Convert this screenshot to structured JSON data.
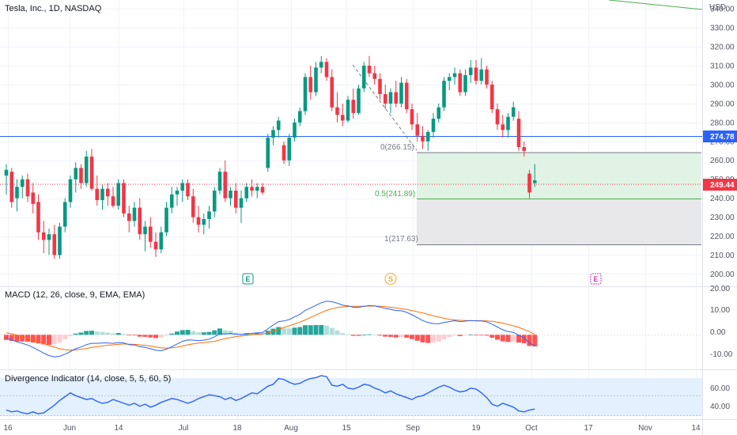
{
  "header": {
    "title": "Tesla, Inc., 1D, NASDAQ",
    "currency": "USD"
  },
  "colors": {
    "up": "#089981",
    "down": "#f23645",
    "hline": "#2962ff",
    "fib_green_fill": "#e1f3e4",
    "fib_gray_fill": "#e8e8ea",
    "macd_line": "#2962ff",
    "signal_line": "#ff6d00",
    "hist_up_strong": "#26a69a",
    "hist_up_weak": "#b2dfdb",
    "hist_down_strong": "#ff5252",
    "hist_down_weak": "#ffcdd2",
    "div_line": "#2962ff",
    "div_band": "#e3f0fd",
    "earnings": "#089981",
    "split": "#f5a623",
    "estimated_earnings": "#cc2fcc"
  },
  "price_axis": {
    "ticks": [
      "340.00",
      "330.00",
      "320.00",
      "310.00",
      "300.00",
      "290.00",
      "280.00",
      "270.00",
      "260.00",
      "250.00",
      "240.00",
      "230.00",
      "220.00",
      "210.00",
      "200.00"
    ],
    "horizontal_line_label": "274.78",
    "last_price_label": "249.44"
  },
  "fib": {
    "level_0": "0(266.15)",
    "level_05": "0.5(241.89)",
    "level_1": "1(217.63)"
  },
  "events": {
    "earnings_1": "E",
    "split": "S",
    "earnings_2": "E"
  },
  "macd_pane": {
    "title": "MACD (12, 26, close, 9, EMA, EMA)",
    "ticks": [
      "20.00",
      "10.00",
      "0.00",
      "-10.00"
    ]
  },
  "div_pane": {
    "title": "Divergence Indicator (14, close, 5, 5, 60, 5)",
    "ticks": [
      "60.00",
      "40.00"
    ]
  },
  "time_axis": {
    "labels": [
      "16",
      "Jun",
      "14",
      "Jul",
      "18",
      "Aug",
      "15",
      "Sep",
      "19",
      "Oct",
      "17",
      "Nov",
      "14"
    ]
  },
  "chart_data": {
    "type": "candlestick",
    "title": "Tesla, Inc., 1D, NASDAQ",
    "currency": "USD",
    "candles": [
      {
        "o": 252,
        "h": 258,
        "l": 242,
        "c": 255
      },
      {
        "o": 254,
        "h": 256,
        "l": 235,
        "c": 238
      },
      {
        "o": 240,
        "h": 250,
        "l": 233,
        "c": 246
      },
      {
        "o": 246,
        "h": 252,
        "l": 240,
        "c": 250
      },
      {
        "o": 250,
        "h": 253,
        "l": 238,
        "c": 241
      },
      {
        "o": 243,
        "h": 248,
        "l": 232,
        "c": 237
      },
      {
        "o": 238,
        "h": 242,
        "l": 218,
        "c": 222
      },
      {
        "o": 222,
        "h": 228,
        "l": 211,
        "c": 218
      },
      {
        "o": 218,
        "h": 224,
        "l": 210,
        "c": 221
      },
      {
        "o": 221,
        "h": 226,
        "l": 208,
        "c": 210
      },
      {
        "o": 210,
        "h": 227,
        "l": 208,
        "c": 225
      },
      {
        "o": 225,
        "h": 240,
        "l": 222,
        "c": 238
      },
      {
        "o": 238,
        "h": 252,
        "l": 235,
        "c": 250
      },
      {
        "o": 250,
        "h": 259,
        "l": 243,
        "c": 256
      },
      {
        "o": 256,
        "h": 258,
        "l": 245,
        "c": 248
      },
      {
        "o": 248,
        "h": 265,
        "l": 246,
        "c": 262
      },
      {
        "o": 262,
        "h": 266,
        "l": 244,
        "c": 245
      },
      {
        "o": 245,
        "h": 252,
        "l": 236,
        "c": 239
      },
      {
        "o": 239,
        "h": 247,
        "l": 234,
        "c": 245
      },
      {
        "o": 245,
        "h": 248,
        "l": 236,
        "c": 241
      },
      {
        "o": 241,
        "h": 246,
        "l": 235,
        "c": 236
      },
      {
        "o": 236,
        "h": 250,
        "l": 234,
        "c": 248
      },
      {
        "o": 248,
        "h": 250,
        "l": 230,
        "c": 232
      },
      {
        "o": 232,
        "h": 236,
        "l": 222,
        "c": 228
      },
      {
        "o": 228,
        "h": 238,
        "l": 225,
        "c": 235
      },
      {
        "o": 235,
        "h": 240,
        "l": 218,
        "c": 221
      },
      {
        "o": 221,
        "h": 228,
        "l": 212,
        "c": 225
      },
      {
        "o": 225,
        "h": 230,
        "l": 214,
        "c": 217
      },
      {
        "o": 217,
        "h": 222,
        "l": 209,
        "c": 213
      },
      {
        "o": 213,
        "h": 225,
        "l": 211,
        "c": 222
      },
      {
        "o": 222,
        "h": 238,
        "l": 220,
        "c": 235
      },
      {
        "o": 235,
        "h": 246,
        "l": 232,
        "c": 242
      },
      {
        "o": 242,
        "h": 246,
        "l": 236,
        "c": 244
      },
      {
        "o": 244,
        "h": 250,
        "l": 238,
        "c": 248
      },
      {
        "o": 248,
        "h": 250,
        "l": 239,
        "c": 241
      },
      {
        "o": 241,
        "h": 245,
        "l": 227,
        "c": 230
      },
      {
        "o": 230,
        "h": 236,
        "l": 222,
        "c": 226
      },
      {
        "o": 226,
        "h": 232,
        "l": 221,
        "c": 229
      },
      {
        "o": 229,
        "h": 236,
        "l": 224,
        "c": 233
      },
      {
        "o": 233,
        "h": 246,
        "l": 230,
        "c": 244
      },
      {
        "o": 244,
        "h": 256,
        "l": 242,
        "c": 254
      },
      {
        "o": 254,
        "h": 260,
        "l": 238,
        "c": 240
      },
      {
        "o": 240,
        "h": 246,
        "l": 236,
        "c": 244
      },
      {
        "o": 244,
        "h": 248,
        "l": 232,
        "c": 235
      },
      {
        "o": 235,
        "h": 244,
        "l": 227,
        "c": 240
      },
      {
        "o": 240,
        "h": 248,
        "l": 238,
        "c": 246
      },
      {
        "o": 246,
        "h": 250,
        "l": 241,
        "c": 244
      },
      {
        "o": 244,
        "h": 248,
        "l": 240,
        "c": 246
      },
      {
        "o": 246,
        "h": 248,
        "l": 242,
        "c": 243
      },
      {
        "o": 256,
        "h": 274,
        "l": 254,
        "c": 272
      },
      {
        "o": 272,
        "h": 278,
        "l": 268,
        "c": 276
      },
      {
        "o": 276,
        "h": 283,
        "l": 272,
        "c": 281
      },
      {
        "o": 268,
        "h": 270,
        "l": 258,
        "c": 260
      },
      {
        "o": 260,
        "h": 274,
        "l": 257,
        "c": 272
      },
      {
        "o": 272,
        "h": 282,
        "l": 270,
        "c": 280
      },
      {
        "o": 280,
        "h": 288,
        "l": 278,
        "c": 286
      },
      {
        "o": 286,
        "h": 306,
        "l": 284,
        "c": 304
      },
      {
        "o": 304,
        "h": 310,
        "l": 292,
        "c": 296
      },
      {
        "o": 296,
        "h": 312,
        "l": 294,
        "c": 309
      },
      {
        "o": 309,
        "h": 315,
        "l": 306,
        "c": 312
      },
      {
        "o": 312,
        "h": 314,
        "l": 302,
        "c": 304
      },
      {
        "o": 304,
        "h": 308,
        "l": 286,
        "c": 288
      },
      {
        "o": 288,
        "h": 296,
        "l": 280,
        "c": 284
      },
      {
        "o": 284,
        "h": 290,
        "l": 278,
        "c": 281
      },
      {
        "o": 281,
        "h": 294,
        "l": 280,
        "c": 292
      },
      {
        "o": 292,
        "h": 298,
        "l": 282,
        "c": 285
      },
      {
        "o": 285,
        "h": 300,
        "l": 284,
        "c": 298
      },
      {
        "o": 298,
        "h": 312,
        "l": 296,
        "c": 310
      },
      {
        "o": 310,
        "h": 315,
        "l": 304,
        "c": 306
      },
      {
        "o": 306,
        "h": 310,
        "l": 300,
        "c": 303
      },
      {
        "o": 303,
        "h": 306,
        "l": 292,
        "c": 295
      },
      {
        "o": 295,
        "h": 300,
        "l": 287,
        "c": 290
      },
      {
        "o": 290,
        "h": 298,
        "l": 285,
        "c": 296
      },
      {
        "o": 296,
        "h": 302,
        "l": 288,
        "c": 290
      },
      {
        "o": 290,
        "h": 304,
        "l": 288,
        "c": 301
      },
      {
        "o": 301,
        "h": 303,
        "l": 285,
        "c": 287
      },
      {
        "o": 287,
        "h": 290,
        "l": 276,
        "c": 279
      },
      {
        "o": 279,
        "h": 285,
        "l": 270,
        "c": 273
      },
      {
        "o": 273,
        "h": 278,
        "l": 266,
        "c": 270
      },
      {
        "o": 270,
        "h": 276,
        "l": 265,
        "c": 275
      },
      {
        "o": 275,
        "h": 285,
        "l": 272,
        "c": 282
      },
      {
        "o": 282,
        "h": 290,
        "l": 280,
        "c": 288
      },
      {
        "o": 288,
        "h": 304,
        "l": 286,
        "c": 302
      },
      {
        "o": 302,
        "h": 306,
        "l": 297,
        "c": 304
      },
      {
        "o": 304,
        "h": 309,
        "l": 300,
        "c": 306
      },
      {
        "o": 306,
        "h": 308,
        "l": 294,
        "c": 296
      },
      {
        "o": 296,
        "h": 308,
        "l": 294,
        "c": 305
      },
      {
        "o": 305,
        "h": 313,
        "l": 301,
        "c": 309
      },
      {
        "o": 309,
        "h": 313,
        "l": 300,
        "c": 302
      },
      {
        "o": 302,
        "h": 314,
        "l": 300,
        "c": 308
      },
      {
        "o": 308,
        "h": 310,
        "l": 298,
        "c": 300
      },
      {
        "o": 300,
        "h": 302,
        "l": 285,
        "c": 287
      },
      {
        "o": 287,
        "h": 290,
        "l": 276,
        "c": 279
      },
      {
        "o": 279,
        "h": 284,
        "l": 272,
        "c": 276
      },
      {
        "o": 276,
        "h": 285,
        "l": 272,
        "c": 283
      },
      {
        "o": 283,
        "h": 291,
        "l": 281,
        "c": 288
      },
      {
        "o": 282,
        "h": 286,
        "l": 265,
        "c": 267
      },
      {
        "o": 267,
        "h": 270,
        "l": 262,
        "c": 265
      },
      {
        "o": 253,
        "h": 255,
        "l": 240,
        "c": 243
      },
      {
        "o": 248,
        "h": 258,
        "l": 246,
        "c": 249.44
      }
    ],
    "horizontal_line": 274.78,
    "last_price": 249.44,
    "fib_retracement": {
      "level_0": 266.15,
      "level_05": 241.89,
      "level_1": 217.63
    },
    "y_range": [
      196,
      343
    ],
    "macd": {
      "macd": [
        -1.5,
        -2.5,
        -3.5,
        -4.2,
        -5.0,
        -6.2,
        -7.5,
        -9.0,
        -10.2,
        -10.8,
        -10.5,
        -9.5,
        -8.2,
        -6.8,
        -6.0,
        -4.8,
        -4.2,
        -4.2,
        -4.0,
        -4.0,
        -4.2,
        -3.8,
        -4.0,
        -4.8,
        -5.0,
        -5.8,
        -6.2,
        -6.8,
        -7.6,
        -7.8,
        -7.0,
        -5.8,
        -4.5,
        -3.2,
        -2.5,
        -2.6,
        -2.9,
        -2.6,
        -2.1,
        -1.0,
        0.6,
        0.4,
        0.7,
        0.2,
        0.1,
        0.5,
        0.7,
        1.0,
        1.0,
        3.0,
        4.8,
        6.5,
        6.8,
        7.5,
        8.8,
        10.0,
        12.0,
        13.2,
        14.5,
        15.7,
        16.5,
        16.2,
        15.5,
        14.5,
        14.2,
        13.5,
        13.5,
        14.0,
        14.3,
        14.2,
        13.6,
        12.9,
        12.5,
        11.9,
        11.8,
        11.0,
        9.8,
        8.4,
        7.0,
        6.0,
        5.5,
        5.4,
        6.0,
        6.5,
        6.9,
        6.5,
        6.7,
        7.0,
        6.8,
        6.8,
        6.4,
        5.2,
        3.8,
        2.5,
        1.6,
        1.2,
        -0.2,
        -1.5,
        -4.0,
        -5.5
      ],
      "signal": [
        1.0,
        0.5,
        -0.2,
        -0.9,
        -1.6,
        -2.4,
        -3.3,
        -4.3,
        -5.3,
        -6.1,
        -6.8,
        -7.3,
        -7.5,
        -7.4,
        -7.1,
        -6.7,
        -6.2,
        -5.8,
        -5.4,
        -5.1,
        -4.9,
        -4.7,
        -4.5,
        -4.6,
        -4.7,
        -4.9,
        -5.2,
        -5.5,
        -6.0,
        -6.4,
        -6.5,
        -6.4,
        -6.1,
        -5.5,
        -4.9,
        -4.4,
        -4.1,
        -3.8,
        -3.5,
        -3.2,
        -2.5,
        -1.8,
        -1.3,
        -0.9,
        -0.6,
        -0.3,
        0.0,
        0.2,
        0.4,
        1.0,
        1.8,
        2.7,
        3.6,
        4.4,
        5.3,
        6.2,
        7.3,
        8.5,
        9.7,
        10.9,
        12.0,
        12.8,
        13.4,
        13.7,
        13.9,
        14.0,
        14.0,
        14.0,
        14.1,
        14.1,
        14.0,
        13.8,
        13.5,
        13.2,
        12.8,
        12.4,
        11.9,
        11.3,
        10.7,
        10.0,
        9.3,
        8.7,
        8.1,
        7.6,
        7.3,
        7.1,
        7.0,
        6.9,
        6.9,
        6.9,
        6.8,
        6.6,
        6.2,
        5.7,
        5.1,
        4.4,
        3.6,
        2.6,
        1.5,
        0.2
      ],
      "histogram": [
        -2.5,
        -3.0,
        -3.3,
        -3.3,
        -3.4,
        -3.8,
        -4.2,
        -4.7,
        -4.9,
        -4.7,
        -3.7,
        -2.2,
        -0.7,
        0.6,
        1.1,
        1.9,
        2.0,
        1.6,
        1.4,
        1.1,
        0.7,
        0.9,
        0.5,
        -0.2,
        -0.3,
        -0.9,
        -1.0,
        -1.3,
        -1.6,
        -1.4,
        -0.5,
        0.6,
        1.6,
        2.3,
        2.4,
        1.8,
        1.2,
        1.2,
        1.4,
        2.2,
        3.1,
        2.2,
        2.0,
        1.1,
        0.7,
        0.8,
        0.7,
        0.8,
        0.6,
        2.0,
        3.0,
        3.8,
        3.2,
        3.1,
        3.5,
        3.8,
        4.7,
        4.7,
        4.8,
        4.8,
        4.5,
        3.4,
        2.1,
        0.8,
        0.3,
        -0.5,
        -0.5,
        0.0,
        0.2,
        0.1,
        -0.4,
        -0.9,
        -1.0,
        -1.3,
        -1.0,
        -1.4,
        -2.1,
        -2.9,
        -3.7,
        -4.0,
        -3.8,
        -3.3,
        -2.1,
        -1.1,
        -0.4,
        -0.6,
        -0.3,
        0.1,
        -0.1,
        -0.1,
        -0.4,
        -1.4,
        -2.4,
        -3.2,
        -3.5,
        -3.2,
        -3.8,
        -4.1,
        -5.5,
        -5.7
      ],
      "y_range": [
        -15,
        23
      ]
    },
    "divergence": {
      "values": [
        37,
        35,
        36,
        34,
        33,
        35,
        33,
        34,
        38,
        42,
        47,
        51,
        55,
        52,
        50,
        48,
        49,
        46,
        44,
        45,
        48,
        46,
        44,
        42,
        44,
        41,
        43,
        40,
        42,
        45,
        47,
        49,
        48,
        46,
        44,
        46,
        49,
        51,
        53,
        52,
        51,
        48,
        50,
        47,
        49,
        52,
        55,
        54,
        58,
        62,
        64,
        70,
        69,
        66,
        64,
        65,
        68,
        70,
        71,
        73,
        72,
        63,
        62,
        64,
        60,
        59,
        61,
        64,
        63,
        60,
        58,
        55,
        57,
        54,
        52,
        50,
        48,
        51,
        52,
        55,
        58,
        61,
        63,
        61,
        58,
        56,
        57,
        60,
        59,
        55,
        50,
        43,
        41,
        44,
        42,
        40,
        36,
        35,
        37,
        38
      ],
      "bands": [
        60,
        40
      ],
      "y_range": [
        29,
        78
      ]
    },
    "events": [
      {
        "type": "earnings",
        "label": "E"
      },
      {
        "type": "split",
        "label": "S"
      },
      {
        "type": "earnings",
        "label": "E"
      }
    ]
  }
}
